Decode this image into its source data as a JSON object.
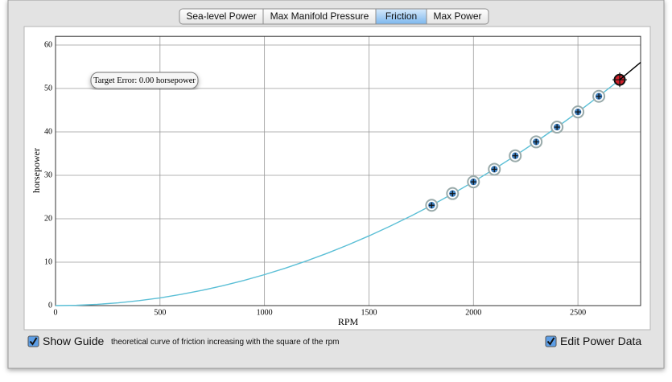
{
  "tabs": [
    "Sea-level Power",
    "Max Manifold Pressure",
    "Friction",
    "Max Power"
  ],
  "selected_tab": 2,
  "chart_data": {
    "type": "line",
    "x_label": "RPM",
    "y_label": "horsepower",
    "annotation": "Target Error: 0.00 horsepower",
    "xlim": [
      0,
      2800
    ],
    "ylim": [
      0,
      62
    ],
    "xticks": [
      0,
      500,
      1000,
      1500,
      2000,
      2500
    ],
    "yticks": [
      0,
      10,
      20,
      30,
      40,
      50,
      60
    ],
    "grid": true,
    "series": [
      {
        "type": "line",
        "color": "#5bbfd6",
        "x": [
          0,
          100,
          200,
          300,
          400,
          500,
          600,
          700,
          800,
          900,
          1000,
          1100,
          1200,
          1300,
          1400,
          1500,
          1600,
          1700,
          1800,
          1900,
          2000,
          2100,
          2200,
          2300,
          2400,
          2500,
          2600,
          2700
        ],
        "values": [
          0,
          0.07,
          0.29,
          0.64,
          1.14,
          1.78,
          2.57,
          3.5,
          4.57,
          5.78,
          7.13,
          8.63,
          10.27,
          12.05,
          13.98,
          16.05,
          18.26,
          20.61,
          23.11,
          25.75,
          28.53,
          31.46,
          34.52,
          37.73,
          41.09,
          44.58,
          48.22,
          52
        ]
      },
      {
        "type": "scatter",
        "color": "#3d7fbf",
        "x": [
          1800,
          1900,
          2000,
          2100,
          2200,
          2300,
          2400,
          2500,
          2600
        ],
        "values": [
          23.1,
          25.8,
          28.5,
          31.4,
          34.5,
          37.7,
          41.1,
          44.6,
          48.2
        ]
      },
      {
        "type": "target",
        "color": "#d0202a",
        "x": [
          2700
        ],
        "values": [
          52
        ]
      },
      {
        "type": "line",
        "color": "#000000",
        "x": [
          2700,
          2800
        ],
        "values": [
          52,
          56
        ]
      }
    ]
  },
  "controls": {
    "show_guide": {
      "label": "Show Guide",
      "checked": true
    },
    "guide_text": "theoretical curve of friction increasing with the square of the rpm",
    "edit_power_data": {
      "label": "Edit Power Data",
      "checked": true
    }
  }
}
